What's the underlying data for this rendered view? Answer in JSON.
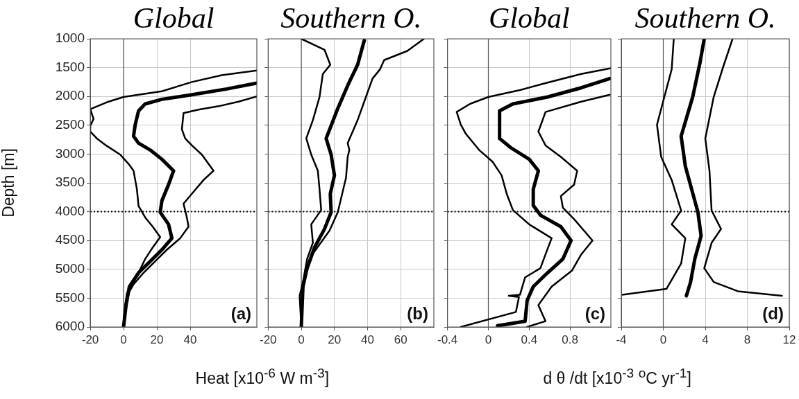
{
  "chart_data": [
    {
      "type": "line",
      "title": "Global",
      "ylabel": "Depth [m]",
      "xlabel": "Heat [x10$^{-6}$ W m$^{-3}$]",
      "xlim": [
        -20,
        80
      ],
      "xticks": [
        -20,
        0,
        20,
        40
      ],
      "ylim": [
        6000,
        1000
      ],
      "yticks": [
        1000,
        1500,
        2000,
        2500,
        3000,
        3500,
        4000,
        4500,
        5000,
        5500,
        6000
      ],
      "grid": true,
      "annotations": [
        "(a)"
      ],
      "ref_lines": [
        {
          "axis": "x",
          "value": 0,
          "line_style": "solid",
          "color": "#555555"
        },
        {
          "axis": "y",
          "value": 4000,
          "line_style": "dotted",
          "color": "#000000"
        }
      ],
      "series": [
        {
          "color": "#000000",
          "x": [
            80,
            59,
            41,
            23,
            9,
            0,
            -9,
            -20,
            -18,
            -20,
            -20,
            -16,
            -10.5,
            -2,
            3,
            6,
            8,
            9,
            13,
            17.5,
            22,
            17.5,
            13,
            9,
            6,
            2,
            1,
            0
          ],
          "values": [
            1550,
            1630,
            1750,
            1910,
            1970,
            2010,
            2090,
            2220,
            2390,
            2510,
            2610,
            2730,
            2850,
            3010,
            3170,
            3290,
            3610,
            3900,
            4100,
            4260,
            4440,
            4620,
            4820,
            5060,
            5220,
            5420,
            5620,
            6000
          ]
        },
        {
          "color": "#000000",
          "x": [
            80,
            62,
            41,
            23,
            13,
            9,
            7,
            6,
            9,
            16,
            23,
            30,
            27,
            23,
            22,
            27,
            29,
            23,
            16,
            9,
            3.5,
            1.5,
            0
          ],
          "values": [
            1770,
            1870,
            1970,
            2050,
            2130,
            2250,
            2490,
            2690,
            2810,
            2930,
            3090,
            3290,
            3530,
            3810,
            4010,
            4220,
            4460,
            4660,
            4860,
            5060,
            5300,
            5620,
            6000
          ]
        },
        {
          "color": "#000000",
          "x": [
            80,
            69,
            57,
            45,
            36,
            35,
            37,
            41,
            47,
            54,
            48,
            41,
            36,
            38,
            39,
            34,
            26,
            19,
            12,
            6,
            2,
            1,
            0
          ],
          "values": [
            2000,
            2090,
            2170,
            2230,
            2290,
            2570,
            2730,
            2850,
            3010,
            3290,
            3450,
            3690,
            3860,
            4100,
            4260,
            4460,
            4660,
            4860,
            5060,
            5260,
            5460,
            5820,
            6000
          ]
        }
      ]
    },
    {
      "type": "line",
      "title": "Southern O.",
      "xlim": [
        -20,
        80
      ],
      "xticks": [
        -20,
        0,
        20,
        40,
        60
      ],
      "ylim": [
        6000,
        1000
      ],
      "yticks": [
        1000,
        1500,
        2000,
        2500,
        3000,
        3500,
        4000,
        4500,
        5000,
        5500,
        6000
      ],
      "grid": true,
      "tick_labels": "x",
      "annotations": [
        "(b)"
      ],
      "ref_lines": [
        {
          "axis": "x",
          "value": 0,
          "line_style": "solid",
          "color": "#555555"
        },
        {
          "axis": "y",
          "value": 4000,
          "line_style": "dotted",
          "color": "#000000"
        }
      ],
      "series": [
        {
          "color": "#000000",
          "x": [
            0,
            14,
            17.5,
            13,
            11,
            7,
            3,
            6,
            10,
            11,
            12,
            6,
            7,
            3.5,
            1,
            -1,
            0
          ],
          "values": [
            1000,
            1190,
            1450,
            1610,
            2010,
            2410,
            2730,
            3010,
            3290,
            3610,
            3970,
            4220,
            4540,
            4820,
            5220,
            5460,
            6000
          ]
        },
        {
          "color": "#000000",
          "x": [
            38,
            34,
            28,
            22,
            15,
            18,
            20,
            17.5,
            18,
            14,
            8,
            3.5,
            1,
            0
          ],
          "values": [
            1030,
            1450,
            1810,
            2210,
            2730,
            3010,
            3370,
            3690,
            4010,
            4300,
            4620,
            4980,
            5300,
            6000
          ]
        },
        {
          "color": "#000000",
          "x": [
            74,
            64,
            50,
            47.5,
            43,
            39,
            34,
            28,
            29,
            28,
            27,
            22,
            17,
            7,
            3,
            1,
            0
          ],
          "values": [
            1000,
            1210,
            1370,
            1530,
            1690,
            2010,
            2410,
            2810,
            2930,
            3050,
            3410,
            4010,
            4330,
            4730,
            5060,
            5340,
            6000
          ]
        }
      ]
    },
    {
      "type": "line",
      "title": "Global",
      "xlabel": "d θ /dt [x10$^{-3}$ $^{o}$C yr$^{-1}$]",
      "xlim": [
        -0.4,
        1.2
      ],
      "xticks": [
        -0.4,
        0,
        0.4,
        0.8
      ],
      "ylim": [
        6000,
        1000
      ],
      "yticks": [
        1000,
        1500,
        2000,
        2500,
        3000,
        3500,
        4000,
        4500,
        5000,
        5500,
        6000
      ],
      "grid": true,
      "tick_labels": "x",
      "annotations": [
        "(c)"
      ],
      "ref_lines": [
        {
          "axis": "x",
          "value": 0,
          "line_style": "solid",
          "color": "#555555"
        },
        {
          "axis": "y",
          "value": 4000,
          "line_style": "dotted",
          "color": "#000000"
        }
      ],
      "series": [
        {
          "color": "#000000",
          "x": [
            1.2,
            0.91,
            0.56,
            0.31,
            0,
            -0.18,
            -0.31,
            -0.27,
            -0.22,
            -0.09,
            0.04,
            0.13,
            0.18,
            0.24,
            0.4,
            0.62,
            0.56,
            0.51,
            0.36,
            0.31,
            0.2,
            0.3,
            0.27,
            -0.27
          ],
          "values": [
            1510,
            1610,
            1770,
            1890,
            2010,
            2130,
            2270,
            2490,
            2650,
            2930,
            3130,
            3370,
            3690,
            3970,
            4220,
            4460,
            4740,
            4980,
            5140,
            5440,
            5460,
            5480,
            5740,
            6000
          ]
        },
        {
          "color": "#000000",
          "x": [
            1.19,
            0.91,
            0.58,
            0.24,
            0.11,
            0.11,
            0.22,
            0.4,
            0.49,
            0.44,
            0.44,
            0.51,
            0.71,
            0.81,
            0.73,
            0.58,
            0.44,
            0.38,
            0.36,
            0.09
          ],
          "values": [
            1690,
            1850,
            2010,
            2130,
            2250,
            2730,
            2890,
            3090,
            3290,
            3610,
            3890,
            4060,
            4260,
            4500,
            4820,
            5060,
            5300,
            5540,
            5900,
            5980
          ]
        },
        {
          "color": "#000000",
          "x": [
            1.19,
            0.91,
            0.56,
            0.49,
            0.56,
            0.71,
            0.87,
            0.84,
            0.71,
            0.73,
            0.84,
            1.02,
            0.91,
            0.82,
            0.62,
            0.49,
            0.56,
            0.38
          ],
          "values": [
            1970,
            2090,
            2270,
            2610,
            2850,
            3050,
            3290,
            3530,
            3730,
            3930,
            4130,
            4500,
            4740,
            5020,
            5300,
            5620,
            5900,
            6000
          ]
        }
      ]
    },
    {
      "type": "line",
      "title": "Southern O.",
      "xlim": [
        -4,
        12
      ],
      "xticks": [
        -4,
        0,
        4,
        8,
        12
      ],
      "ylim": [
        6000,
        1000
      ],
      "yticks": [
        1000,
        1500,
        2000,
        2500,
        3000,
        3500,
        4000,
        4500,
        5000,
        5500,
        6000
      ],
      "grid": true,
      "tick_labels": "x",
      "annotations": [
        "(d)"
      ],
      "ref_lines": [
        {
          "axis": "x",
          "value": 0,
          "line_style": "solid",
          "color": "#555555"
        },
        {
          "axis": "y",
          "value": 4000,
          "line_style": "dotted",
          "color": "#000000"
        }
      ],
      "series": [
        {
          "color": "#000000",
          "x": [
            1,
            0.8,
            0.1,
            -0.6,
            -0.2,
            0.8,
            1.7,
            0.8,
            2.1,
            1.7,
            0.3,
            -3.9
          ],
          "values": [
            1000,
            1530,
            2010,
            2490,
            3050,
            3450,
            3980,
            4220,
            4460,
            4900,
            5340,
            5440
          ]
        },
        {
          "color": "#000000",
          "x": [
            3.9,
            3.5,
            2.8,
            1.7,
            2.1,
            3.3,
            3.6,
            3,
            2.6,
            2.2
          ],
          "values": [
            1000,
            1410,
            2010,
            2690,
            3210,
            4010,
            4420,
            4820,
            5220,
            5460
          ]
        },
        {
          "color": "#000000",
          "x": [
            6.6,
            5.7,
            4.8,
            4,
            4.4,
            4.6,
            5.5,
            4.6,
            3.9,
            4.8,
            7.1,
            11.3
          ],
          "values": [
            1000,
            1490,
            2010,
            2730,
            3290,
            3980,
            4300,
            4540,
            4980,
            5220,
            5380,
            5460
          ]
        }
      ]
    }
  ]
}
